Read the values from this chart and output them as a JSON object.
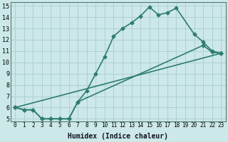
{
  "xlabel": "Humidex (Indice chaleur)",
  "xlim": [
    -0.5,
    23.5
  ],
  "ylim": [
    4.8,
    15.3
  ],
  "xticks": [
    0,
    1,
    2,
    3,
    4,
    5,
    6,
    7,
    8,
    9,
    10,
    11,
    12,
    13,
    14,
    15,
    16,
    17,
    18,
    19,
    20,
    21,
    22,
    23
  ],
  "yticks": [
    5,
    6,
    7,
    8,
    9,
    10,
    11,
    12,
    13,
    14,
    15
  ],
  "bg_color": "#cce8e8",
  "line_color": "#2e7d6e",
  "grid_color": "#b0d0d0",
  "series": [
    {
      "x": [
        0,
        1,
        2,
        3,
        4,
        5,
        6,
        7,
        8,
        9,
        10,
        11,
        12,
        13,
        14,
        15,
        16,
        17,
        18,
        20,
        21,
        22,
        23
      ],
      "y": [
        6,
        5.8,
        5.8,
        5.0,
        5.0,
        5.0,
        5.0,
        6.5,
        7.5,
        9.0,
        10.5,
        12.3,
        13.0,
        13.5,
        14.1,
        14.9,
        14.2,
        14.4,
        14.8,
        12.5,
        11.8,
        11.0,
        10.8
      ],
      "marker": "D",
      "markersize": 2.5,
      "linewidth": 1.2
    },
    {
      "x": [
        0,
        1,
        2,
        3,
        4,
        5,
        6,
        7,
        21,
        22,
        23
      ],
      "y": [
        6,
        5.8,
        5.8,
        5.0,
        5.0,
        5.0,
        5.0,
        6.5,
        11.5,
        10.9,
        10.8
      ],
      "marker": "D",
      "markersize": 2.5,
      "linewidth": 1.2
    },
    {
      "x": [
        0,
        23
      ],
      "y": [
        6.0,
        10.8
      ],
      "marker": "D",
      "markersize": 2.5,
      "linewidth": 1.2
    }
  ]
}
